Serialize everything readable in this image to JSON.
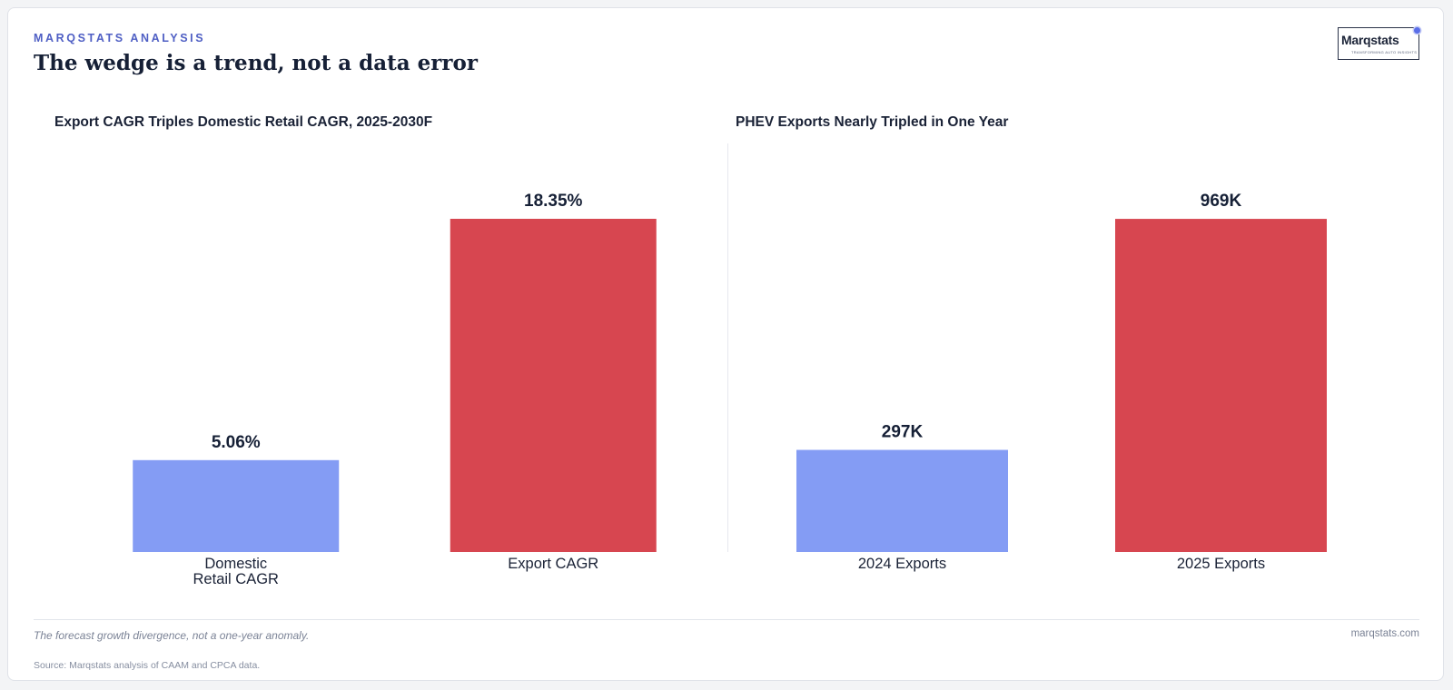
{
  "header": {
    "kicker": "MARQSTATS ANALYSIS",
    "title": "The wedge is a trend, not a data error"
  },
  "logo": {
    "word": "Marqstats",
    "tagline": "TRANSFORMING AUTO INSIGHTS"
  },
  "colors": {
    "accent": "#4f5fc4",
    "bar_blue": "#849cf4",
    "bar_red": "#d74650",
    "text_dark": "#162036"
  },
  "chart_data": [
    {
      "type": "bar",
      "title": "Export CAGR Triples Domestic Retail CAGR, 2025-2030F",
      "categories": [
        "Domestic\nRetail CAGR",
        "Export CAGR"
      ],
      "values": [
        5.06,
        18.35
      ],
      "value_labels": [
        "5.06%",
        "18.35%"
      ],
      "colors": [
        "#849cf4",
        "#d74650"
      ],
      "ylim": [
        0,
        22
      ],
      "grid": false
    },
    {
      "type": "bar",
      "title": "PHEV Exports Nearly Tripled in One Year",
      "categories": [
        "2024 Exports",
        "2025 Exports"
      ],
      "values": [
        297,
        969
      ],
      "value_labels": [
        "297K",
        "969K"
      ],
      "colors": [
        "#849cf4",
        "#d74650"
      ],
      "ylim": [
        0,
        1162
      ],
      "grid": false
    }
  ],
  "footer": {
    "note": "The forecast growth divergence, not a one-year anomaly.",
    "site": "marqstats.com",
    "source": "Source: Marqstats analysis of CAAM and CPCA data."
  }
}
